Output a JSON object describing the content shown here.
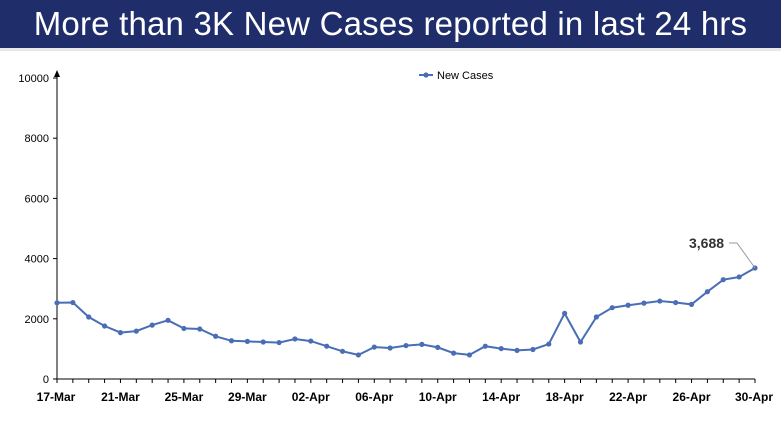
{
  "title": "More than 3K New Cases reported in last 24 hrs",
  "colors": {
    "title_bg": "#1f2d6b",
    "title_text": "#ffffff",
    "series": "#4a6eb5"
  },
  "chart_data": {
    "type": "line",
    "title": "",
    "xlabel": "",
    "ylabel": "",
    "ylim": [
      0,
      10000
    ],
    "yticks": [
      0,
      2000,
      4000,
      6000,
      8000,
      10000
    ],
    "ytick_labels": [
      "0",
      "2000",
      "4000",
      "6000",
      "8000",
      "10000"
    ],
    "xtick_labels": [
      "17-Mar",
      "21-Mar",
      "25-Mar",
      "29-Mar",
      "02-Apr",
      "06-Apr",
      "10-Apr",
      "14-Apr",
      "18-Apr",
      "22-Apr",
      "26-Apr",
      "30-Apr"
    ],
    "grid": false,
    "legend": "top-center",
    "x": [
      "17-Mar",
      "18-Mar",
      "19-Mar",
      "20-Mar",
      "21-Mar",
      "22-Mar",
      "23-Mar",
      "24-Mar",
      "25-Mar",
      "26-Mar",
      "27-Mar",
      "28-Mar",
      "29-Mar",
      "30-Mar",
      "31-Mar",
      "01-Apr",
      "02-Apr",
      "03-Apr",
      "04-Apr",
      "05-Apr",
      "06-Apr",
      "07-Apr",
      "08-Apr",
      "09-Apr",
      "10-Apr",
      "11-Apr",
      "12-Apr",
      "13-Apr",
      "14-Apr",
      "15-Apr",
      "16-Apr",
      "17-Apr",
      "18-Apr",
      "19-Apr",
      "20-Apr",
      "21-Apr",
      "22-Apr",
      "23-Apr",
      "24-Apr",
      "25-Apr",
      "26-Apr",
      "27-Apr",
      "28-Apr",
      "29-Apr",
      "30-Apr"
    ],
    "series": [
      {
        "name": "New Cases",
        "values": [
          2530,
          2540,
          2060,
          1760,
          1540,
          1590,
          1790,
          1950,
          1680,
          1660,
          1420,
          1270,
          1250,
          1230,
          1210,
          1330,
          1260,
          1090,
          920,
          800,
          1060,
          1030,
          1110,
          1150,
          1050,
          860,
          800,
          1090,
          1010,
          950,
          980,
          1160,
          2180,
          1230,
          2060,
          2370,
          2450,
          2520,
          2590,
          2540,
          2480,
          2900,
          3300,
          3390,
          3688
        ]
      }
    ],
    "annotations": [
      {
        "label": "3,688",
        "x": "30-Apr",
        "y": 3688
      }
    ]
  }
}
